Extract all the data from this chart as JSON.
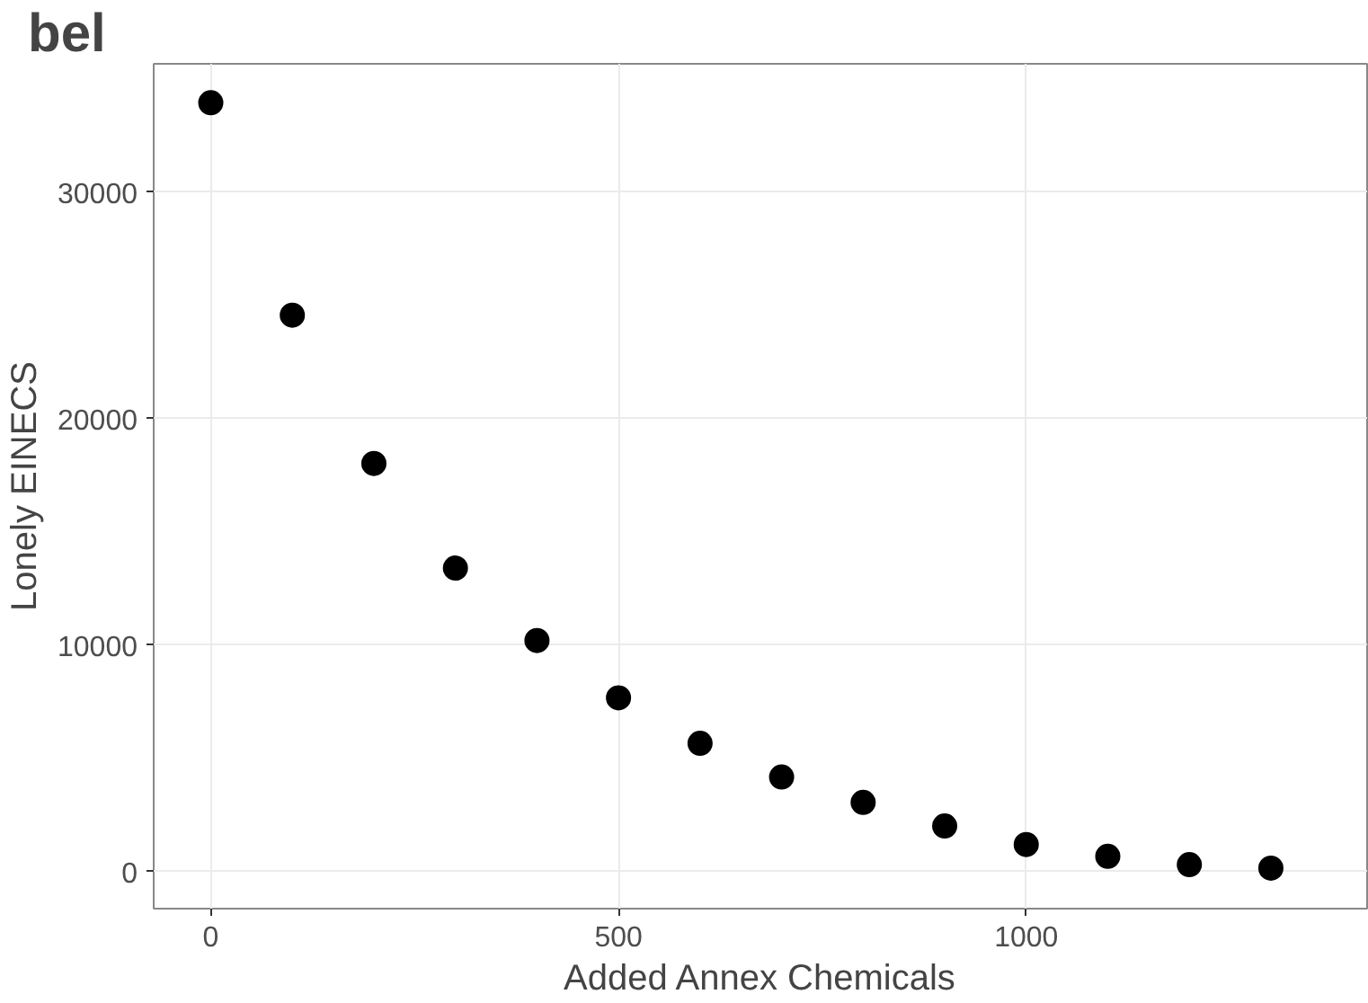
{
  "chart_data": {
    "type": "scatter",
    "title": "bel",
    "xlabel": "Added Annex Chemicals",
    "ylabel": "Lonely EINECS",
    "x": [
      0,
      100,
      200,
      300,
      400,
      500,
      600,
      700,
      800,
      900,
      1000,
      1100,
      1200,
      1300
    ],
    "values": [
      33950,
      24570,
      18020,
      13400,
      10200,
      7670,
      5660,
      4170,
      3050,
      2010,
      1190,
      670,
      300,
      150
    ],
    "color": "#000000",
    "marker": "circle",
    "xlim": [
      -70,
      1418
    ],
    "ylim": [
      -1640,
      35670
    ],
    "xticks": [
      0,
      500,
      1000
    ],
    "yticks": [
      0,
      10000,
      20000,
      30000
    ],
    "grid": true
  }
}
